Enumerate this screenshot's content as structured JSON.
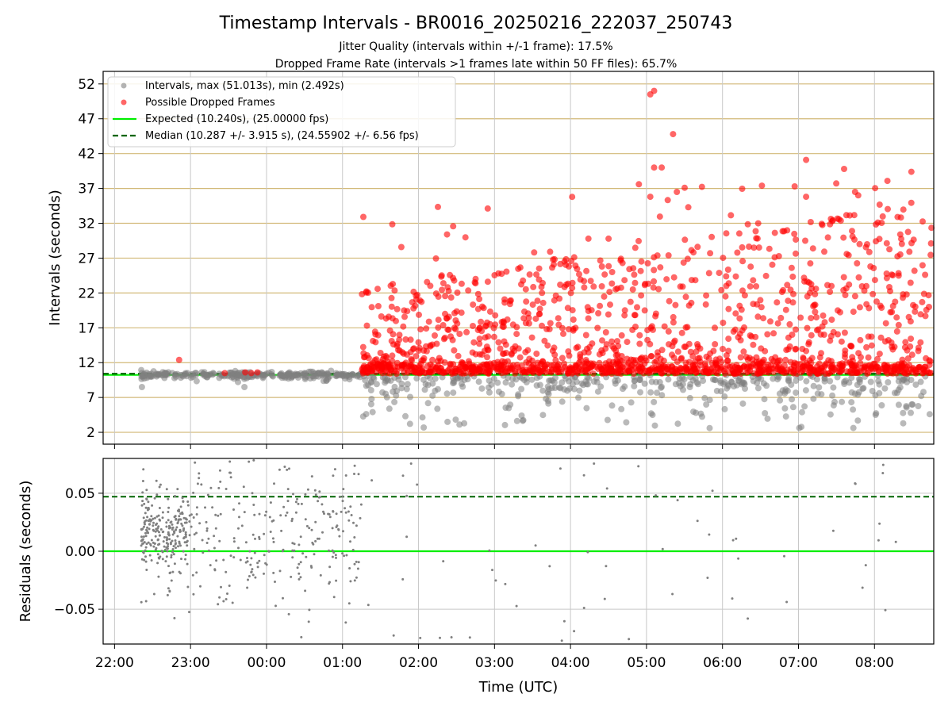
{
  "chart_data": [
    {
      "type": "scatter",
      "title": "Timestamp Intervals - BR0016_20250216_222037_250743",
      "subtitle_lines": [
        "Jitter Quality (intervals within +/-1 frame): 17.5%",
        "Dropped Frame Rate (intervals >1 frames late within 50 FF files): 65.7%"
      ],
      "xlabel": "",
      "ylabel": "Intervals (seconds)",
      "x_tick_labels": [
        "22:00",
        "23:00",
        "00:00",
        "01:00",
        "02:00",
        "03:00",
        "04:00",
        "05:00",
        "06:00",
        "07:00",
        "08:00"
      ],
      "x_ticks_hours": [
        0,
        1,
        2,
        3,
        4,
        5,
        6,
        7,
        8,
        9,
        10
      ],
      "xlim_hours_after_2200": [
        -0.15,
        10.78
      ],
      "ylim": [
        0.3,
        53.8
      ],
      "y_ticks": [
        2,
        7,
        12,
        17,
        22,
        27,
        32,
        37,
        42,
        47,
        52
      ],
      "grid": true,
      "legend_position": "top-left",
      "legend": [
        {
          "label": "Intervals, max (51.013s), min (2.492s)",
          "marker": "circle",
          "color": "#808080"
        },
        {
          "label": "Possible Dropped Frames",
          "marker": "circle",
          "color": "#ff0000"
        },
        {
          "label": "Expected (10.240s), (25.00000 fps)",
          "marker": "solid-line",
          "color": "#00ee00"
        },
        {
          "label": "Median (10.287 +/- 3.915 s), (24.55902 +/- 6.56 fps)",
          "marker": "dashed-line",
          "color": "#006400"
        }
      ],
      "expected_value": 10.24,
      "median_value": 10.287,
      "series": [
        {
          "name": "Intervals, max (51.013s), min (2.492s)",
          "color": "#808080",
          "segments": [
            {
              "x_range_hours": [
                0.35,
                3.25
              ],
              "values_range": [
                8.5,
                11.0
              ]
            },
            {
              "x_range_hours": [
                3.25,
                10.78
              ],
              "values_range": [
                2.5,
                10.3
              ]
            }
          ],
          "max": 51.013,
          "min": 2.492
        },
        {
          "name": "Possible Dropped Frames",
          "color": "#ff0000",
          "segments": [
            {
              "x_range_hours": [
                0.8,
                1.9
              ],
              "values_range": [
                10.4,
                12.5
              ]
            },
            {
              "x_range_hours": [
                3.25,
                10.78
              ],
              "values_range": [
                10.4,
                51.0
              ]
            }
          ]
        }
      ]
    },
    {
      "type": "scatter",
      "title": "",
      "xlabel": "Time (UTC)",
      "ylabel": "Residuals (seconds)",
      "x_tick_labels": [
        "22:00",
        "23:00",
        "00:00",
        "01:00",
        "02:00",
        "03:00",
        "04:00",
        "05:00",
        "06:00",
        "07:00",
        "08:00"
      ],
      "y_tick_labels": [
        "−0.05",
        "0.00",
        "0.05"
      ],
      "y_ticks": [
        -0.05,
        0.0,
        0.05
      ],
      "ylim": [
        -0.08,
        0.08
      ],
      "grid": true,
      "expected_residual": 0.0,
      "median_residual": 0.047,
      "series": [
        {
          "name": "",
          "color": "#808080",
          "segments": [
            {
              "x_range_hours": [
                0.35,
                3.25
              ],
              "values_range": [
                -0.08,
                0.08
              ]
            },
            {
              "x_range_hours": [
                3.25,
                10.78
              ],
              "values_range": [
                -0.08,
                0.08
              ],
              "sparse": true
            }
          ]
        }
      ]
    }
  ]
}
